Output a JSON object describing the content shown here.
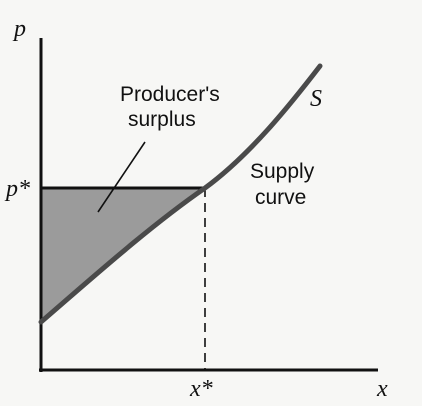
{
  "axes": {
    "y_label": "p",
    "x_label": "x",
    "price_tick": "p*",
    "quantity_tick": "x*"
  },
  "curve_label": "S",
  "supply_label": {
    "line1": "Supply",
    "line2": "curve"
  },
  "surplus_label": {
    "line1": "Producer's",
    "line2": "surplus"
  },
  "colors": {
    "ink": "#111111",
    "curve": "#4a4a4a",
    "surplus_fill": "#9b9b9b",
    "background": "#f7f7f5"
  }
}
